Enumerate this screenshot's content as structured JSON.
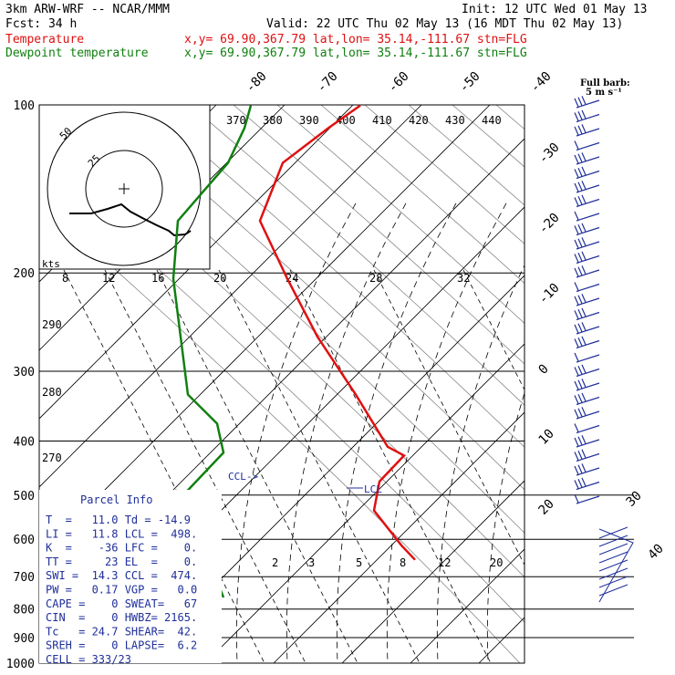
{
  "header": {
    "model": "3km ARW-WRF -- NCAR/MMM",
    "init": "Init: 12 UTC Wed 01 May 13",
    "fcst": "Fcst:    34 h",
    "valid": "Valid: 22 UTC Thu 02 May 13 (16 MDT Thu 02 May 13)",
    "temp_label": "Temperature",
    "dew_label": "Dewpoint temperature",
    "location": "x,y= 69.90,367.79   lat,lon= 35.14,-111.67   stn=FLG"
  },
  "colors": {
    "temperature": "#e01010",
    "dewpoint": "#108010",
    "index": "#1f2f9a",
    "grid": "#000000"
  },
  "chart_data": {
    "type": "line",
    "y_axis_label_values": [
      "100",
      "200",
      "300",
      "400",
      "500",
      "600",
      "700",
      "800",
      "900",
      "1000"
    ],
    "isotherm_labels": [
      "-80",
      "-70",
      "-60",
      "-50",
      "-40",
      "-30",
      "-20",
      "-10",
      "0",
      "10",
      "20",
      "30",
      "40"
    ],
    "theta_labels": [
      "370",
      "380",
      "390",
      "400",
      "410",
      "420",
      "430",
      "440"
    ],
    "mixing_ratio_labels_upper": [
      "8",
      "12",
      "16",
      "20",
      "24",
      "28",
      "32"
    ],
    "mixing_ratio_labels_lower": [
      "2",
      "3",
      "5",
      "8",
      "12",
      "20"
    ],
    "dry_adiabat_labels": [
      "290",
      "280",
      "270"
    ],
    "ccl_label": "CCL->",
    "lcl_label": "LCL",
    "series": [
      {
        "name": "Temperature",
        "points": [
          [
            1,
            395
          ],
          [
            40,
            360
          ],
          [
            100,
            310
          ],
          [
            200,
            285
          ],
          [
            300,
            315
          ],
          [
            400,
            348
          ],
          [
            500,
            390
          ],
          [
            590,
            425
          ],
          [
            605,
            443
          ],
          [
            650,
            416
          ],
          [
            700,
            410
          ],
          [
            760,
            440
          ],
          [
            785,
            455
          ]
        ]
      },
      {
        "name": "Dewpoint temperature",
        "points": [
          [
            1,
            275
          ],
          [
            40,
            268
          ],
          [
            100,
            250
          ],
          [
            200,
            195
          ],
          [
            300,
            190
          ],
          [
            400,
            198
          ],
          [
            500,
            206
          ],
          [
            550,
            238
          ],
          [
            600,
            245
          ],
          [
            650,
            215
          ],
          [
            700,
            185
          ],
          [
            750,
            165
          ],
          [
            800,
            50
          ],
          [
            812,
            55
          ],
          [
            830,
            240
          ],
          [
            850,
            245
          ]
        ]
      }
    ],
    "hodograph": {
      "rings": [
        "25",
        "50"
      ],
      "units": "kts"
    },
    "wind_barb_legend": {
      "title": "Full barb:",
      "value": "5 m s⁻¹"
    }
  },
  "indices": {
    "title": "Parcel Info",
    "rows": [
      "T  =   11.0 Td = -14.9",
      "LI =   11.8 LCL =  498.",
      "K  =    -36 LFC =    0.",
      "TT =     23 EL  =    0.",
      "SWI =  14.3 CCL =  474.",
      "PW =   0.17 VGP =   0.0",
      "CAPE =    0 SWEAT=   67",
      "CIN  =    0 HWBZ= 2165.",
      "Tc   = 24.7 SHEAR=  42.",
      "SREH =    0 LAPSE=  6.2",
      "CELL = 333/23"
    ]
  }
}
